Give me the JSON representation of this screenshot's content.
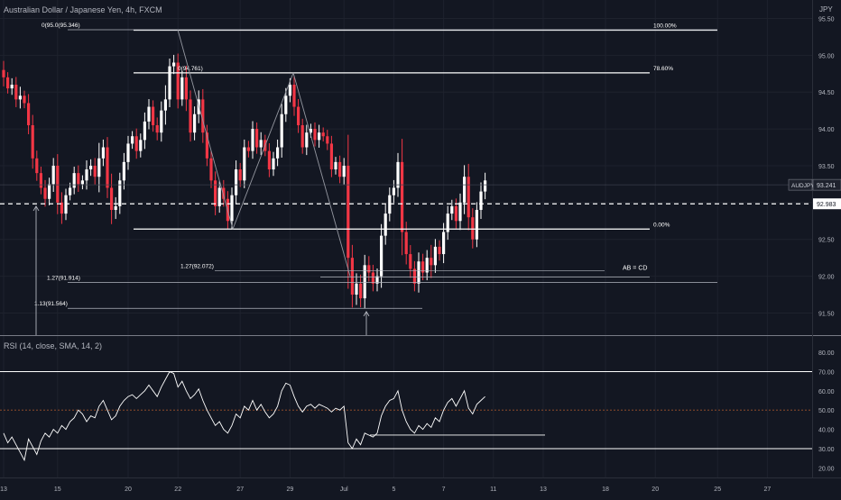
{
  "header": {
    "title": "Australian Dollar / Japanese Yen, 4h, FXCM",
    "currency": "JPY",
    "rsi_title": "RSI (14, close, SMA, 14, 2)"
  },
  "colors": {
    "background": "#131722",
    "up": "#ffffff",
    "down": "#f23645",
    "grid": "#1e222d",
    "line": "#ffffff",
    "muted": "#787b86"
  },
  "chart_data": [
    {
      "type": "candlestick",
      "ylim": [
        91.2,
        95.75
      ],
      "y_ticks": [
        "95.50",
        "95.00",
        "94.50",
        "94.00",
        "93.50",
        "93.00",
        "92.50",
        "92.00",
        "91.50"
      ],
      "x_ticks": [
        "13",
        "15",
        "20",
        "22",
        "27",
        "29",
        "Jul",
        "5",
        "7",
        "11",
        "13",
        "18",
        "20",
        "25",
        "27"
      ],
      "x_tick_index": [
        0,
        13,
        30,
        42,
        57,
        69,
        82,
        94,
        106,
        118,
        130,
        145,
        157,
        172,
        184
      ],
      "closes": [
        94.7,
        94.55,
        94.6,
        94.4,
        94.45,
        94.35,
        94.05,
        93.6,
        93.4,
        93.2,
        93.05,
        93.25,
        93.5,
        93.0,
        92.85,
        93.1,
        93.2,
        93.4,
        93.25,
        93.3,
        93.45,
        93.5,
        93.35,
        93.6,
        93.75,
        93.2,
        92.9,
        92.95,
        93.3,
        93.55,
        93.8,
        93.9,
        93.7,
        93.85,
        94.1,
        94.3,
        94.05,
        93.95,
        94.25,
        94.4,
        94.85,
        94.9,
        94.4,
        94.7,
        94.4,
        93.95,
        94.2,
        94.4,
        93.95,
        93.6,
        93.3,
        92.95,
        93.2,
        93.05,
        92.75,
        93.1,
        93.45,
        93.3,
        93.75,
        93.7,
        94.0,
        93.75,
        93.85,
        93.7,
        93.45,
        93.6,
        93.75,
        94.2,
        94.45,
        94.6,
        94.3,
        94.05,
        93.75,
        93.95,
        94.0,
        93.85,
        93.95,
        93.9,
        93.8,
        93.45,
        93.55,
        93.35,
        93.5,
        92.25,
        91.75,
        91.9,
        91.7,
        92.15,
        92.05,
        91.9,
        92.0,
        92.55,
        92.85,
        93.1,
        93.2,
        93.55,
        92.6,
        92.3,
        92.1,
        91.9,
        92.2,
        92.05,
        92.25,
        92.15,
        92.4,
        92.3,
        92.6,
        92.85,
        92.95,
        92.75,
        93.0,
        93.35,
        92.8,
        92.5,
        92.9,
        93.15,
        93.3
      ],
      "ranges": [
        0.35,
        0.2,
        0.25,
        0.3,
        0.35,
        0.2,
        0.35,
        0.4,
        0.3,
        0.25,
        0.3,
        0.25,
        0.3,
        0.45,
        0.4,
        0.25,
        0.2,
        0.25,
        0.3,
        0.2,
        0.35,
        0.25,
        0.3,
        0.6,
        0.3,
        0.4,
        0.55,
        0.35,
        0.3,
        0.35,
        0.3,
        0.2,
        0.3,
        0.25,
        0.35,
        0.3,
        0.25,
        0.3,
        0.35,
        0.55,
        0.3,
        0.3,
        0.35,
        0.25,
        0.45,
        0.35,
        0.3,
        0.35,
        0.4,
        0.3,
        0.3,
        0.35,
        0.25,
        0.3,
        0.3,
        0.3,
        0.35,
        0.25,
        0.3,
        0.25,
        0.3,
        0.25,
        0.3,
        0.2,
        0.3,
        0.25,
        0.3,
        0.4,
        0.3,
        0.25,
        0.35,
        0.3,
        0.25,
        0.3,
        0.2,
        0.25,
        0.3,
        0.2,
        0.25,
        0.3,
        0.2,
        0.25,
        0.3,
        1.2,
        0.5,
        0.4,
        0.35,
        0.4,
        0.35,
        0.3,
        0.3,
        0.45,
        0.35,
        0.3,
        0.3,
        0.35,
        0.9,
        0.4,
        0.35,
        0.3,
        0.35,
        0.3,
        0.3,
        0.5,
        0.3,
        0.25,
        0.35,
        0.3,
        0.25,
        0.3,
        0.35,
        0.45,
        0.5,
        0.35,
        0.3,
        0.35,
        0.3
      ],
      "current_price": "92.983",
      "last_price": "93.241",
      "symbol": "AUDJPY",
      "fib_levels": [
        {
          "label": "100.00%",
          "price": 95.34
        },
        {
          "label": "78.60%",
          "price": 94.761
        },
        {
          "label": "0.00%",
          "price": 92.64
        }
      ],
      "point_labels": [
        {
          "label": "0(95.0(95.346)",
          "price": 95.346
        },
        {
          "label": "0(94.761)",
          "price": 94.761
        },
        {
          "label": "1.27(92.072)",
          "price": 92.072
        },
        {
          "label": "1.27(91.914)",
          "price": 91.914
        },
        {
          "label": "1.13(91.564)",
          "price": 91.564
        }
      ],
      "annotation": "AB = CD"
    },
    {
      "type": "line",
      "name": "RSI",
      "ylim": [
        15,
        88
      ],
      "y_ticks": [
        "80.00",
        "70.00",
        "60.00",
        "50.00",
        "40.00",
        "30.00",
        "20.00"
      ],
      "levels": [
        70,
        50,
        30
      ],
      "values": [
        38,
        33,
        36,
        32,
        28,
        24,
        35,
        31,
        27,
        34,
        38,
        36,
        40,
        38,
        42,
        40,
        44,
        46,
        50,
        48,
        44,
        47,
        46,
        52,
        55,
        50,
        45,
        47,
        52,
        55,
        57,
        58,
        56,
        58,
        60,
        63,
        60,
        57,
        62,
        66,
        70,
        69,
        62,
        65,
        60,
        56,
        58,
        61,
        55,
        50,
        46,
        42,
        44,
        40,
        38,
        42,
        48,
        46,
        52,
        50,
        55,
        50,
        53,
        49,
        46,
        48,
        52,
        60,
        64,
        63,
        57,
        52,
        49,
        52,
        53,
        51,
        53,
        52,
        51,
        49,
        51,
        50,
        52,
        33,
        30,
        35,
        32,
        38,
        37,
        36,
        38,
        47,
        52,
        55,
        56,
        60,
        50,
        44,
        40,
        38,
        42,
        40,
        43,
        41,
        46,
        44,
        50,
        54,
        56,
        52,
        56,
        60,
        51,
        48,
        53,
        55,
        57
      ]
    }
  ]
}
